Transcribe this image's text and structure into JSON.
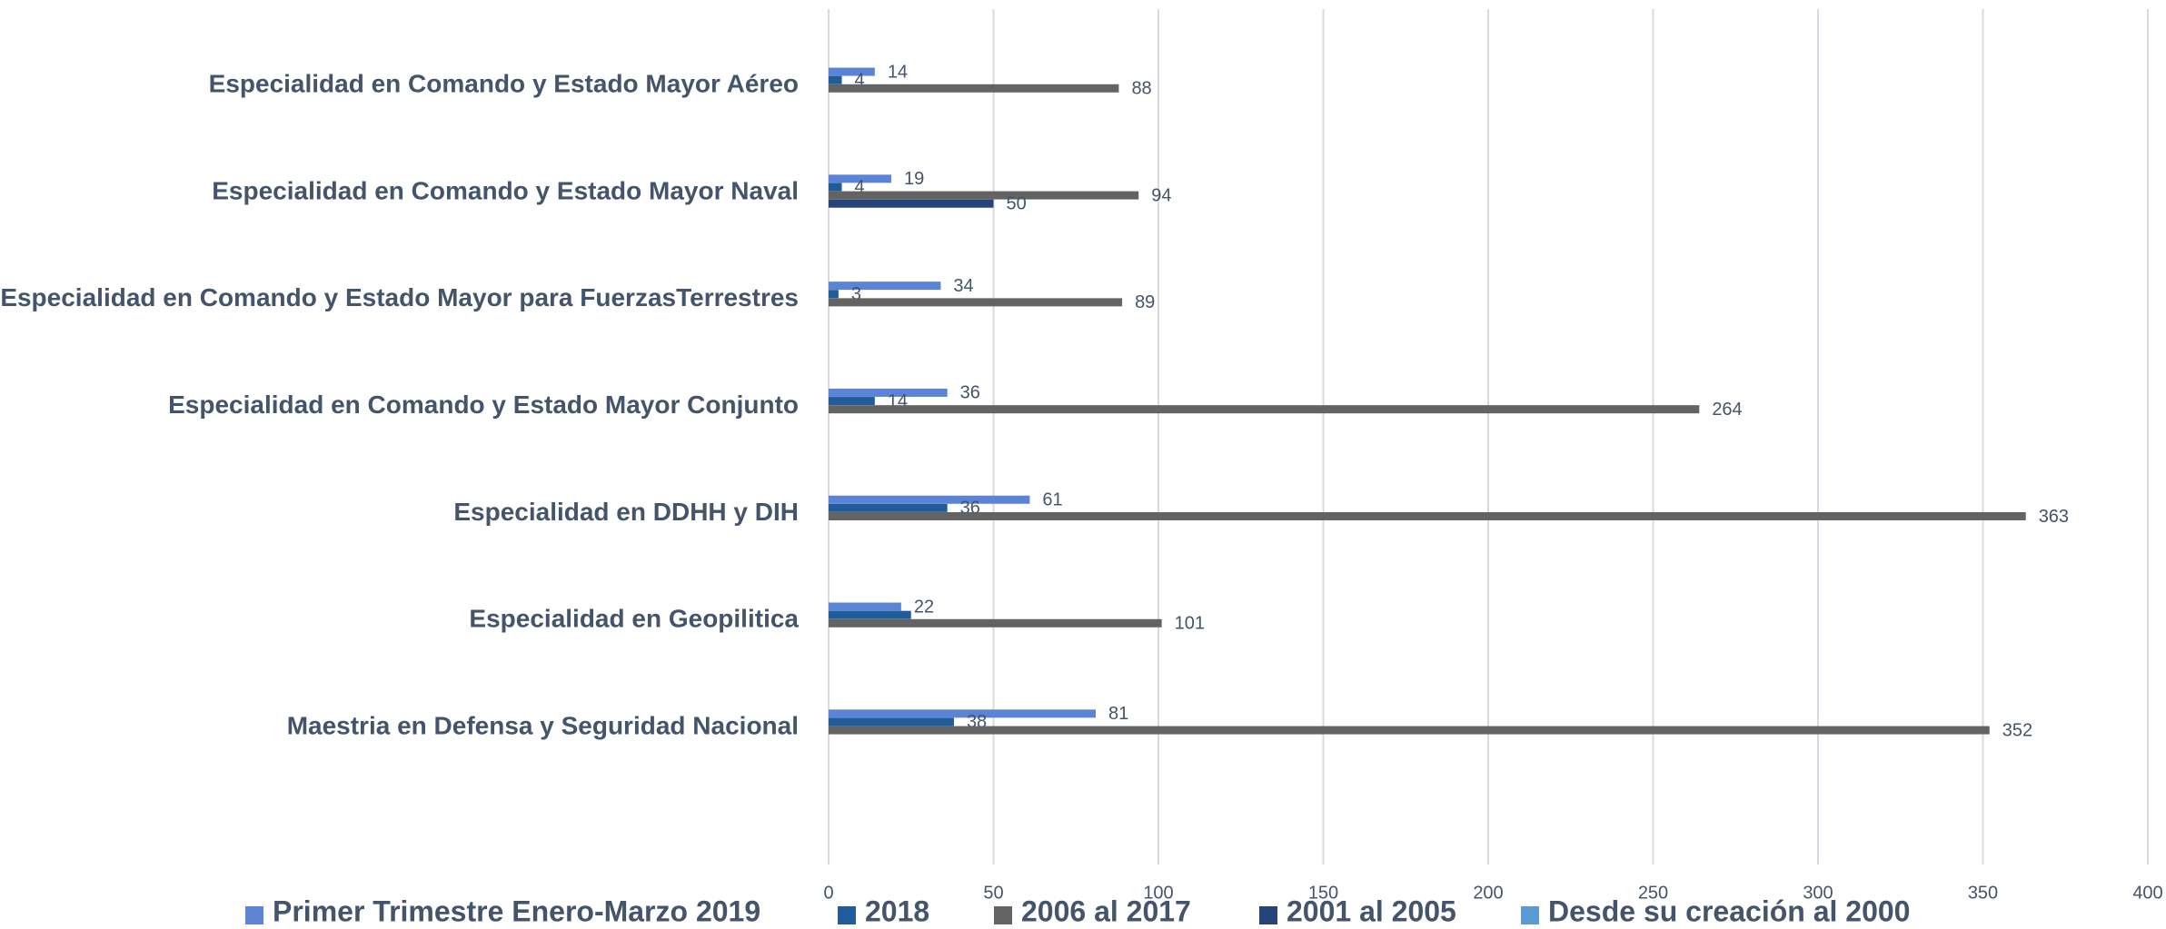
{
  "chart_data": {
    "type": "bar",
    "orientation": "horizontal",
    "categories": [
      "Especialidad en Comando y Estado Mayor Aéreo",
      "Especialidad en Comando y Estado Mayor Naval",
      "Especialidad en Comando y Estado Mayor para FuerzasTerrestres",
      "Especialidad en Comando y Estado Mayor Conjunto",
      "Especialidad en DDHH y DIH",
      "Especialidad en Geopilitica",
      "Maestria en Defensa y Seguridad Nacional"
    ],
    "series": [
      {
        "name": "Primer Trimestre Enero-Marzo 2019",
        "color": "#5b84d6",
        "values": [
          14,
          19,
          34,
          36,
          61,
          22,
          81
        ]
      },
      {
        "name": "2018",
        "color": "#1f5c99",
        "values": [
          4,
          4,
          3,
          14,
          36,
          25,
          38
        ],
        "value_labels": [
          "4",
          "4",
          "3",
          "14",
          "36",
          null,
          "38"
        ]
      },
      {
        "name": "2006 al 2017",
        "color": "#636363",
        "values": [
          88,
          94,
          89,
          264,
          363,
          101,
          352
        ]
      },
      {
        "name": "2001 al 2005",
        "color": "#264478",
        "values": [
          null,
          50,
          null,
          null,
          null,
          null,
          null
        ]
      },
      {
        "name": "Desde su creación al 2000",
        "color": "#5b9bd5",
        "values": [
          null,
          null,
          null,
          null,
          null,
          null,
          null
        ]
      }
    ],
    "xlim": [
      0,
      400
    ],
    "xticks": [
      0,
      50,
      100,
      150,
      200,
      250,
      300,
      350,
      400
    ],
    "grid": true,
    "legend": "bottom"
  }
}
